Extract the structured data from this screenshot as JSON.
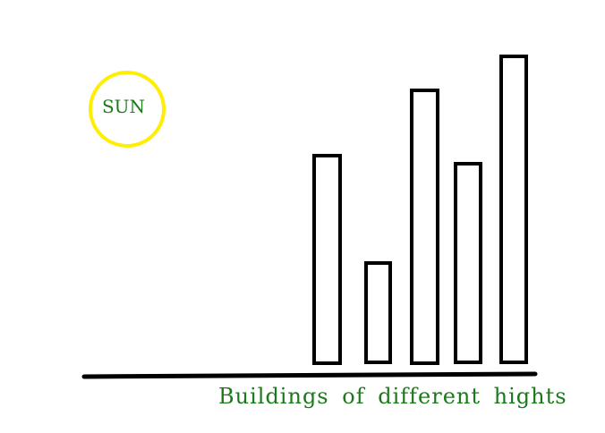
{
  "diagram": {
    "sun": {
      "label": "SUN",
      "stroke_color": "#ffee00",
      "label_color": "#1a7a1a"
    },
    "buildings": [
      {
        "name": "building-1"
      },
      {
        "name": "building-2"
      },
      {
        "name": "building-3"
      },
      {
        "name": "building-4"
      },
      {
        "name": "building-5"
      }
    ],
    "ground": {
      "color": "#000000"
    },
    "caption": {
      "text": "Buildings of different hights",
      "color": "#1a7a1a"
    }
  }
}
